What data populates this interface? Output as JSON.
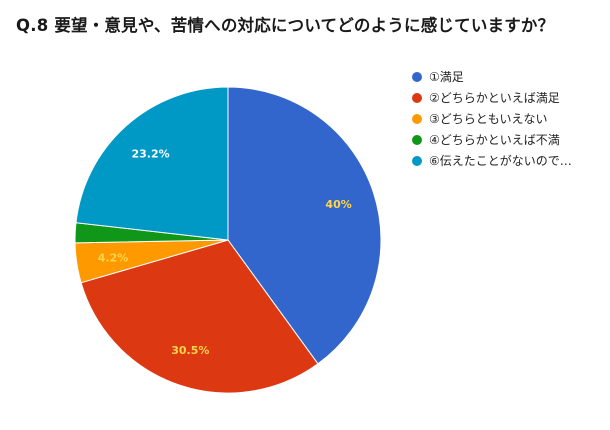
{
  "chart_data": {
    "type": "pie",
    "title": "Q.8 要望・意見や、苦情への対応についてどのように感じていますか？",
    "categories": [
      "①満足",
      "②どちらかといえば満足",
      "③どちらともいえない",
      "④どちらかといえば不満",
      "⑥伝えたことがないので…"
    ],
    "values": [
      40,
      30.5,
      4.2,
      2.1,
      23.2
    ],
    "data_labels": [
      "40%",
      "30.5%",
      "4.2%",
      "",
      "23.2%"
    ],
    "colors": [
      "#3366cc",
      "#dc3912",
      "#ff9900",
      "#109618",
      "#0099c6"
    ],
    "label_colors": [
      "#ffd54a",
      "#ffd54a",
      "#ffd54a",
      "#ffffff",
      "#ffffff"
    ],
    "legend_position": "right",
    "start_angle": "top",
    "direction": "clockwise"
  }
}
